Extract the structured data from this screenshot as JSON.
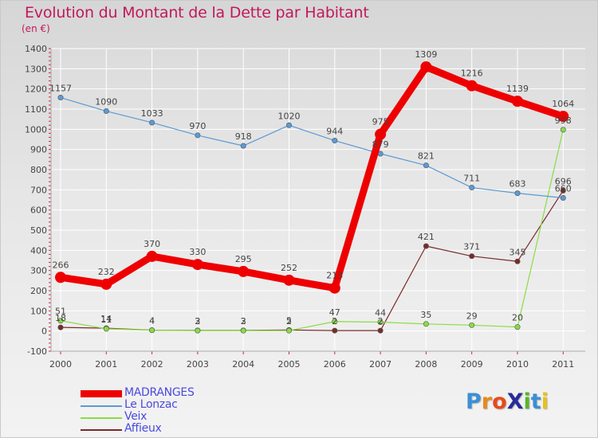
{
  "header": {
    "title": "Evolution du Montant de la Dette par Habitant",
    "subtitle": "(en €)"
  },
  "chart_data": {
    "type": "line",
    "title": "Evolution du Montant de la Dette par Habitant",
    "subtitle": "(en €)",
    "xlabel": "",
    "ylabel": "",
    "ylim": [
      -100,
      1400
    ],
    "yticks": [
      -100,
      0,
      100,
      200,
      300,
      400,
      500,
      600,
      700,
      800,
      900,
      1000,
      1100,
      1200,
      1300,
      1400
    ],
    "grid": true,
    "legend_position": "bottom-left",
    "categories": [
      "2000",
      "2001",
      "2002",
      "2003",
      "2004",
      "2005",
      "2006",
      "2007",
      "2008",
      "2009",
      "2010",
      "2011"
    ],
    "series": [
      {
        "name": "MADRANGES",
        "color": "#ee0000",
        "values": [
          266,
          232,
          370,
          330,
          295,
          252,
          213,
          975,
          1309,
          1216,
          1139,
          1064
        ],
        "labels": [
          "266",
          "232",
          "370",
          "330",
          "295",
          "252",
          "213",
          "975",
          "1309",
          "1216",
          "1139",
          "1064"
        ]
      },
      {
        "name": "Le Lonzac",
        "color": "#5b9bd5",
        "values": [
          1157,
          1090,
          1033,
          970,
          918,
          1020,
          944,
          879,
          821,
          711,
          683,
          660
        ],
        "labels": [
          "1157",
          "1090",
          "1033",
          "970",
          "918",
          "1020",
          "944",
          "879",
          "821",
          "711",
          "683",
          "660"
        ]
      },
      {
        "name": "Veix",
        "color": "#88dd44",
        "values": [
          51,
          11,
          4,
          2,
          2,
          2,
          47,
          44,
          35,
          29,
          20,
          998
        ],
        "labels": [
          "51",
          "11",
          "4",
          "2",
          "2",
          "2",
          "47",
          "44",
          "35",
          "29",
          "20",
          "998"
        ]
      },
      {
        "name": "Affieux",
        "color": "#7a2a2a",
        "values": [
          18,
          14,
          4,
          3,
          3,
          5,
          2,
          2,
          421,
          371,
          345,
          696
        ],
        "labels": [
          "18",
          "14",
          "4",
          "3",
          "3",
          "5",
          "2",
          "2",
          "421",
          "371",
          "345",
          "696"
        ]
      }
    ]
  },
  "legend": {
    "items": [
      {
        "label": "MADRANGES",
        "color": "#ee0000"
      },
      {
        "label": "Le Lonzac",
        "color": "#5b9bd5"
      },
      {
        "label": "Veix",
        "color": "#88dd44"
      },
      {
        "label": "Affieux",
        "color": "#7a2a2a"
      }
    ]
  },
  "logo": {
    "text": "ProXiti",
    "letters": [
      "P",
      "r",
      "o",
      "X",
      "i",
      "t",
      "i"
    ],
    "colors": [
      "#3a8fd6",
      "#e88a1a",
      "#e84a1a",
      "#2a2a9a",
      "#58b428",
      "#3a8fd6",
      "#e8c21a"
    ]
  }
}
